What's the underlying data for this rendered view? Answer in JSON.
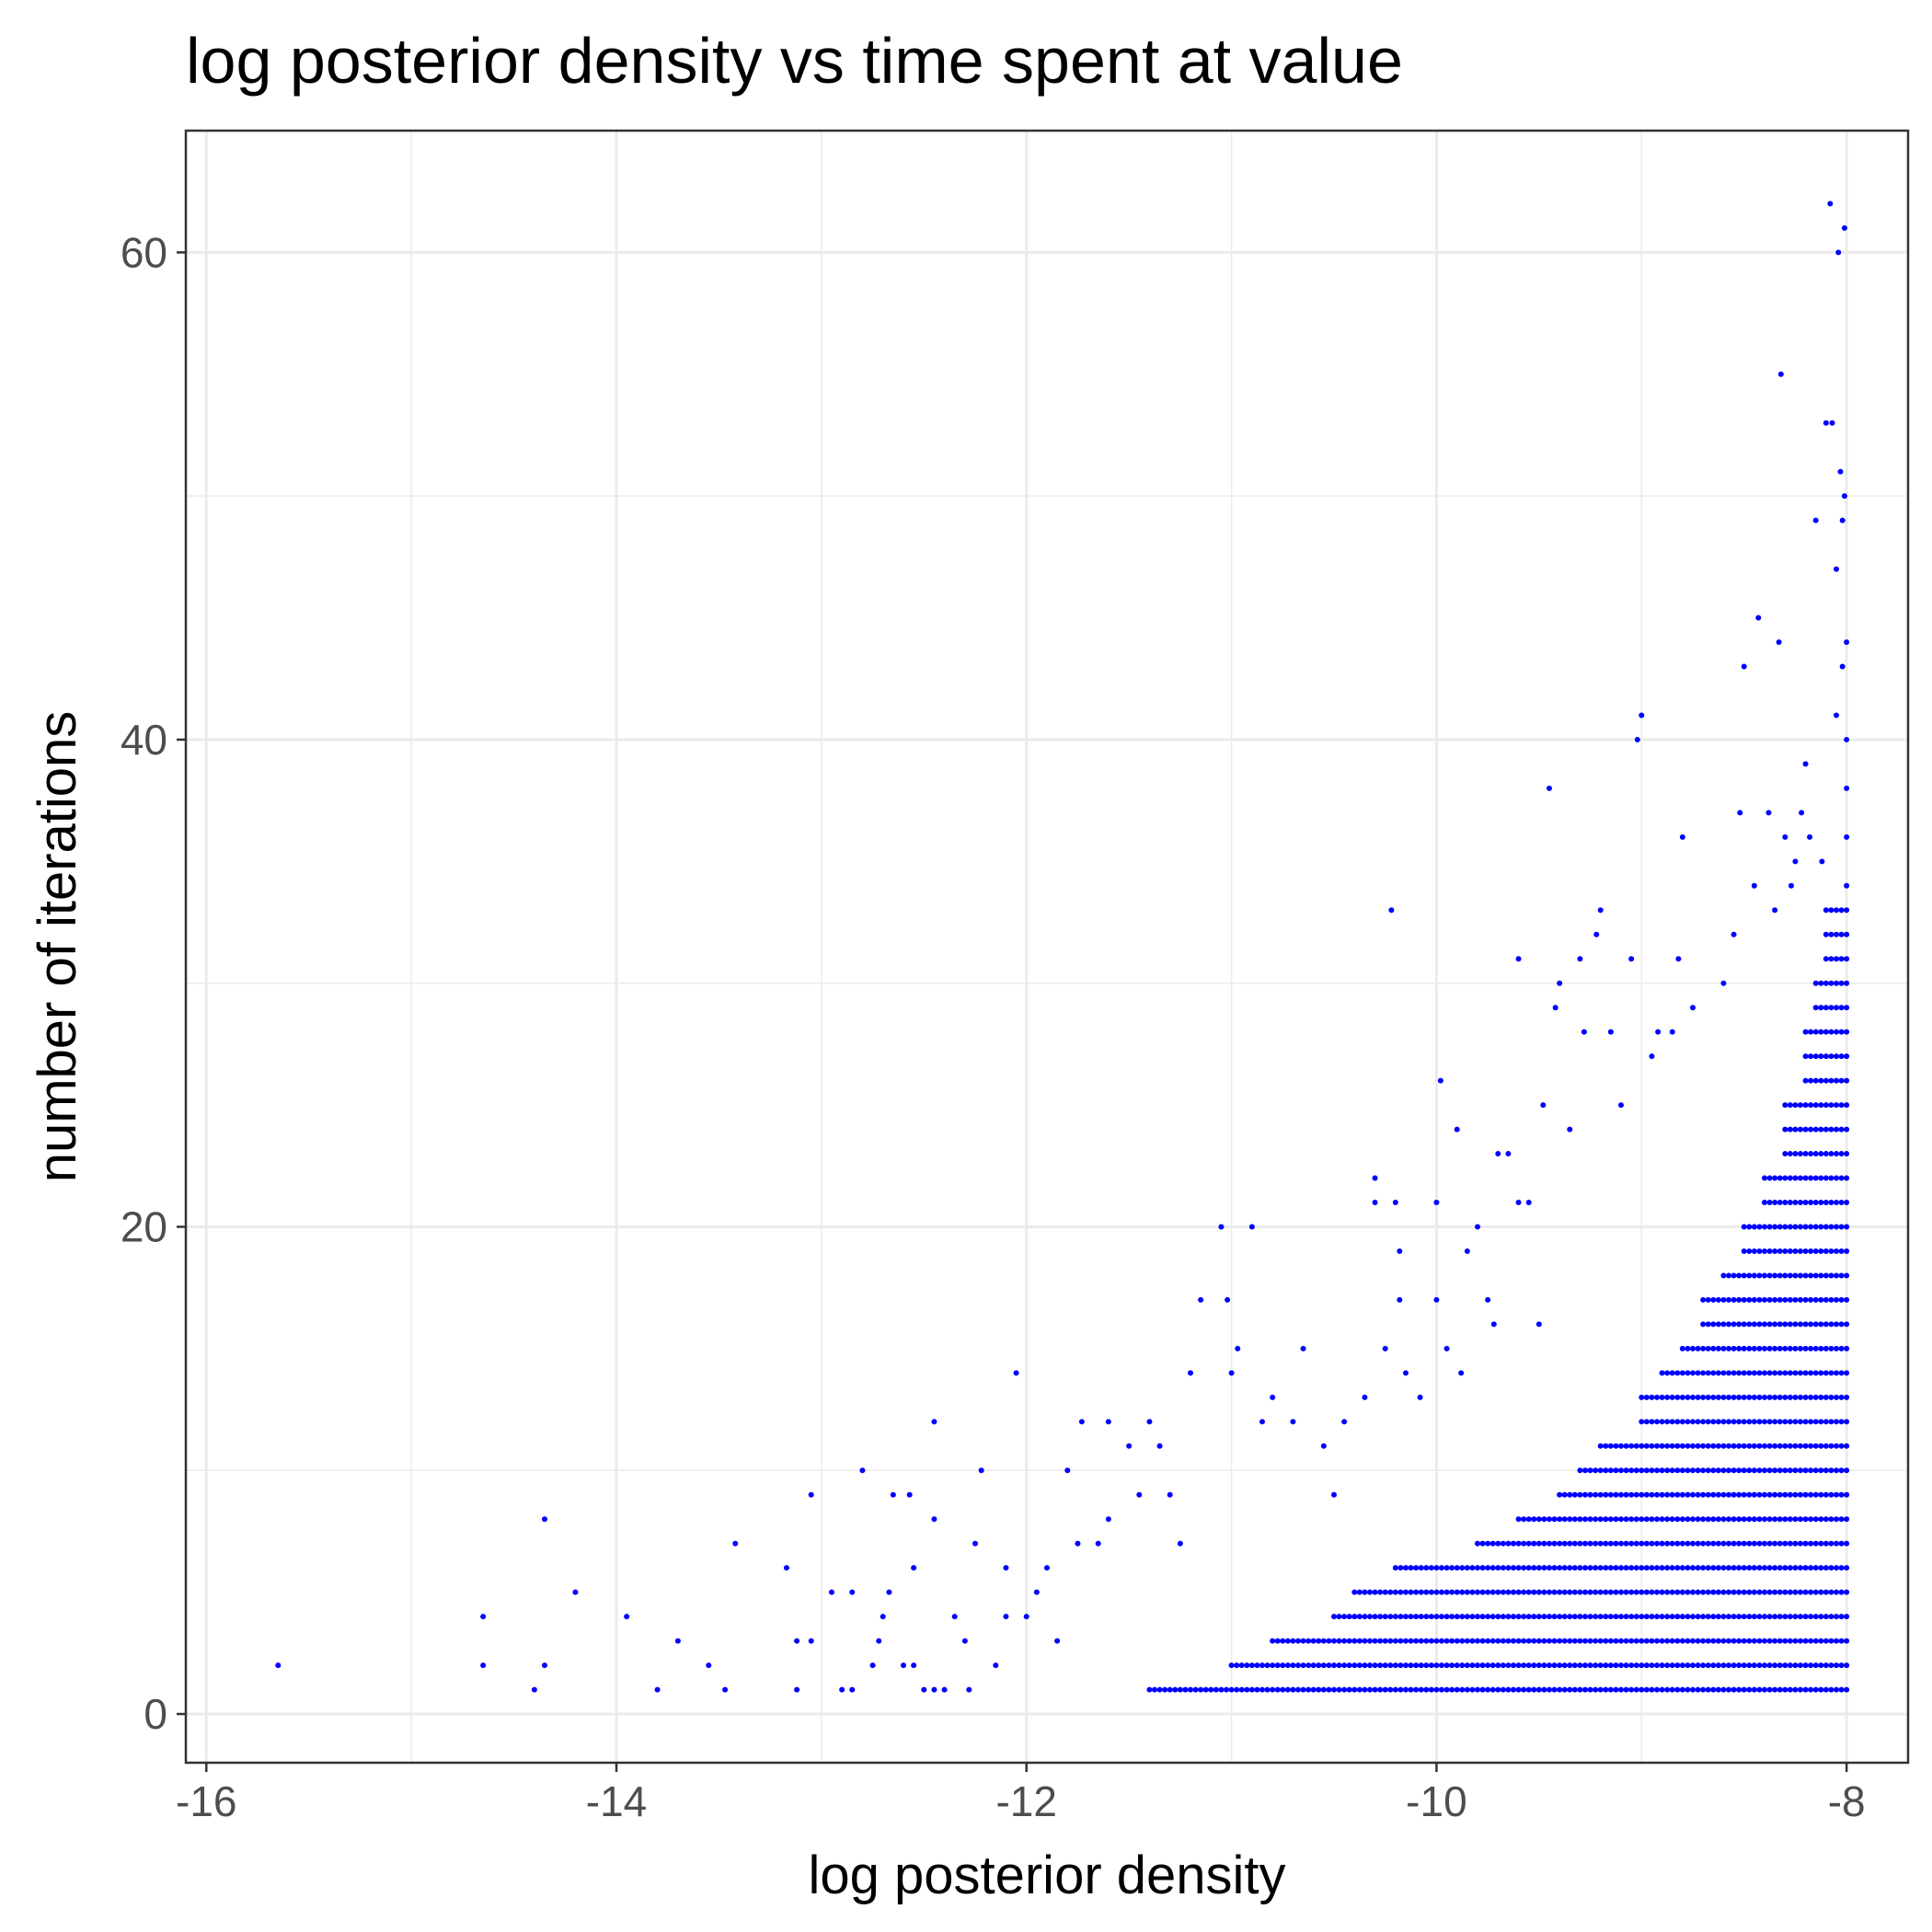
{
  "chart_data": {
    "type": "scatter",
    "title": "log posterior density vs time spent at value",
    "xlabel": "log posterior density",
    "ylabel": "number of iterations",
    "xlim": [
      -16.1,
      -7.7
    ],
    "ylim": [
      -2,
      65
    ],
    "xticks": [
      -16,
      -14,
      -12,
      -10,
      -8
    ],
    "yticks": [
      0,
      20,
      40,
      60
    ],
    "xtick_labels": [
      "-16",
      "-14",
      "-12",
      "-10",
      "-8"
    ],
    "ytick_labels": [
      "0",
      "20",
      "40",
      "60"
    ],
    "grid": true,
    "point_color": "#0000ff",
    "panel_border_color": "#333333",
    "grid_color": "#ebebeb",
    "dense_rows": [
      {
        "y": 1,
        "x_start": -11.4,
        "x_end": -8.0
      },
      {
        "y": 2,
        "x_start": -11.0,
        "x_end": -8.0
      },
      {
        "y": 3,
        "x_start": -10.8,
        "x_end": -8.0
      },
      {
        "y": 4,
        "x_start": -10.5,
        "x_end": -8.0
      },
      {
        "y": 5,
        "x_start": -10.4,
        "x_end": -8.0
      },
      {
        "y": 6,
        "x_start": -10.2,
        "x_end": -8.0
      },
      {
        "y": 7,
        "x_start": -9.8,
        "x_end": -8.0
      },
      {
        "y": 8,
        "x_start": -9.6,
        "x_end": -8.0
      },
      {
        "y": 9,
        "x_start": -9.4,
        "x_end": -8.0
      },
      {
        "y": 10,
        "x_start": -9.3,
        "x_end": -8.0
      },
      {
        "y": 11,
        "x_start": -9.2,
        "x_end": -8.0
      },
      {
        "y": 12,
        "x_start": -9.0,
        "x_end": -8.0
      },
      {
        "y": 13,
        "x_start": -9.0,
        "x_end": -8.0
      },
      {
        "y": 14,
        "x_start": -8.9,
        "x_end": -8.0
      },
      {
        "y": 15,
        "x_start": -8.8,
        "x_end": -8.0
      },
      {
        "y": 16,
        "x_start": -8.7,
        "x_end": -8.0
      },
      {
        "y": 17,
        "x_start": -8.7,
        "x_end": -8.0
      },
      {
        "y": 18,
        "x_start": -8.6,
        "x_end": -8.0
      },
      {
        "y": 19,
        "x_start": -8.5,
        "x_end": -8.0
      },
      {
        "y": 20,
        "x_start": -8.5,
        "x_end": -8.0
      },
      {
        "y": 21,
        "x_start": -8.4,
        "x_end": -8.0
      },
      {
        "y": 22,
        "x_start": -8.4,
        "x_end": -8.0
      },
      {
        "y": 23,
        "x_start": -8.3,
        "x_end": -8.0
      },
      {
        "y": 24,
        "x_start": -8.3,
        "x_end": -8.0
      },
      {
        "y": 25,
        "x_start": -8.3,
        "x_end": -8.0
      },
      {
        "y": 26,
        "x_start": -8.2,
        "x_end": -8.0
      },
      {
        "y": 27,
        "x_start": -8.2,
        "x_end": -8.0
      },
      {
        "y": 28,
        "x_start": -8.2,
        "x_end": -8.0
      },
      {
        "y": 29,
        "x_start": -8.15,
        "x_end": -8.0
      },
      {
        "y": 30,
        "x_start": -8.15,
        "x_end": -8.0
      },
      {
        "y": 31,
        "x_start": -8.1,
        "x_end": -8.0
      },
      {
        "y": 32,
        "x_start": -8.1,
        "x_end": -8.0
      },
      {
        "y": 33,
        "x_start": -8.1,
        "x_end": -8.0
      }
    ],
    "points": [
      [
        -15.65,
        2
      ],
      [
        -14.65,
        2
      ],
      [
        -14.65,
        4
      ],
      [
        -14.4,
        1
      ],
      [
        -14.35,
        2
      ],
      [
        -14.35,
        8
      ],
      [
        -14.2,
        5
      ],
      [
        -13.95,
        4
      ],
      [
        -13.8,
        1
      ],
      [
        -13.7,
        3
      ],
      [
        -13.55,
        2
      ],
      [
        -13.47,
        1
      ],
      [
        -13.42,
        7
      ],
      [
        -13.17,
        6
      ],
      [
        -13.12,
        1
      ],
      [
        -13.12,
        3
      ],
      [
        -13.05,
        3
      ],
      [
        -13.05,
        9
      ],
      [
        -12.95,
        5
      ],
      [
        -12.9,
        1
      ],
      [
        -12.85,
        1
      ],
      [
        -12.85,
        5
      ],
      [
        -12.8,
        10
      ],
      [
        -12.75,
        2
      ],
      [
        -12.72,
        3
      ],
      [
        -12.7,
        4
      ],
      [
        -12.67,
        5
      ],
      [
        -12.65,
        9
      ],
      [
        -12.6,
        2
      ],
      [
        -12.57,
        9
      ],
      [
        -12.55,
        2
      ],
      [
        -12.55,
        6
      ],
      [
        -12.5,
        1
      ],
      [
        -12.45,
        1
      ],
      [
        -12.45,
        8
      ],
      [
        -12.45,
        12
      ],
      [
        -12.4,
        1
      ],
      [
        -12.35,
        4
      ],
      [
        -12.3,
        3
      ],
      [
        -12.28,
        1
      ],
      [
        -12.25,
        7
      ],
      [
        -12.22,
        10
      ],
      [
        -12.15,
        2
      ],
      [
        -12.1,
        4
      ],
      [
        -12.1,
        6
      ],
      [
        -12.05,
        14
      ],
      [
        -12.0,
        4
      ],
      [
        -11.95,
        5
      ],
      [
        -11.9,
        6
      ],
      [
        -11.85,
        3
      ],
      [
        -11.8,
        10
      ],
      [
        -11.75,
        7
      ],
      [
        -11.73,
        12
      ],
      [
        -11.65,
        7
      ],
      [
        -11.6,
        8
      ],
      [
        -11.6,
        12
      ],
      [
        -11.5,
        11
      ],
      [
        -11.45,
        9
      ],
      [
        -11.4,
        12
      ],
      [
        -11.35,
        11
      ],
      [
        -11.3,
        9
      ],
      [
        -11.25,
        7
      ],
      [
        -11.2,
        14
      ],
      [
        -11.15,
        17
      ],
      [
        -11.05,
        20
      ],
      [
        -11.02,
        17
      ],
      [
        -11.0,
        14
      ],
      [
        -10.97,
        15
      ],
      [
        -10.9,
        20
      ],
      [
        -10.85,
        12
      ],
      [
        -10.8,
        13
      ],
      [
        -10.7,
        12
      ],
      [
        -10.65,
        15
      ],
      [
        -10.55,
        11
      ],
      [
        -10.5,
        9
      ],
      [
        -10.45,
        12
      ],
      [
        -10.35,
        13
      ],
      [
        -10.3,
        22
      ],
      [
        -10.3,
        21
      ],
      [
        -10.25,
        15
      ],
      [
        -10.22,
        33
      ],
      [
        -10.2,
        21
      ],
      [
        -10.18,
        19
      ],
      [
        -10.18,
        17
      ],
      [
        -10.15,
        14
      ],
      [
        -10.08,
        13
      ],
      [
        -10.0,
        21
      ],
      [
        -10.0,
        17
      ],
      [
        -9.98,
        26
      ],
      [
        -9.95,
        15
      ],
      [
        -9.9,
        24
      ],
      [
        -9.88,
        14
      ],
      [
        -9.85,
        19
      ],
      [
        -9.8,
        20
      ],
      [
        -9.75,
        17
      ],
      [
        -9.72,
        16
      ],
      [
        -9.7,
        23
      ],
      [
        -9.65,
        23
      ],
      [
        -9.6,
        21
      ],
      [
        -9.6,
        31
      ],
      [
        -9.55,
        21
      ],
      [
        -9.5,
        16
      ],
      [
        -9.48,
        25
      ],
      [
        -9.45,
        38
      ],
      [
        -9.42,
        29
      ],
      [
        -9.4,
        30
      ],
      [
        -9.35,
        24
      ],
      [
        -9.3,
        31
      ],
      [
        -9.28,
        28
      ],
      [
        -9.22,
        32
      ],
      [
        -9.2,
        33
      ],
      [
        -9.15,
        28
      ],
      [
        -9.1,
        25
      ],
      [
        -9.05,
        31
      ],
      [
        -9.02,
        40
      ],
      [
        -9.0,
        41
      ],
      [
        -8.95,
        27
      ],
      [
        -8.92,
        28
      ],
      [
        -8.85,
        28
      ],
      [
        -8.82,
        31
      ],
      [
        -8.8,
        36
      ],
      [
        -8.75,
        29
      ],
      [
        -8.6,
        30
      ],
      [
        -8.55,
        32
      ],
      [
        -8.52,
        37
      ],
      [
        -8.5,
        43
      ],
      [
        -8.45,
        34
      ],
      [
        -8.43,
        45
      ],
      [
        -8.38,
        37
      ],
      [
        -8.35,
        33
      ],
      [
        -8.33,
        44
      ],
      [
        -8.32,
        55
      ],
      [
        -8.3,
        36
      ],
      [
        -8.27,
        34
      ],
      [
        -8.25,
        35
      ],
      [
        -8.22,
        37
      ],
      [
        -8.2,
        39
      ],
      [
        -8.18,
        36
      ],
      [
        -8.15,
        49
      ],
      [
        -8.12,
        35
      ],
      [
        -8.1,
        53
      ],
      [
        -8.08,
        62
      ],
      [
        -8.07,
        53
      ],
      [
        -8.05,
        41
      ],
      [
        -8.05,
        47
      ],
      [
        -8.04,
        60
      ],
      [
        -8.03,
        51
      ],
      [
        -8.02,
        49
      ],
      [
        -8.02,
        43
      ],
      [
        -8.01,
        61
      ],
      [
        -8.01,
        50
      ],
      [
        -8.0,
        44
      ],
      [
        -8.0,
        40
      ],
      [
        -8.0,
        38
      ],
      [
        -8.0,
        36
      ],
      [
        -8.0,
        34
      ]
    ]
  }
}
